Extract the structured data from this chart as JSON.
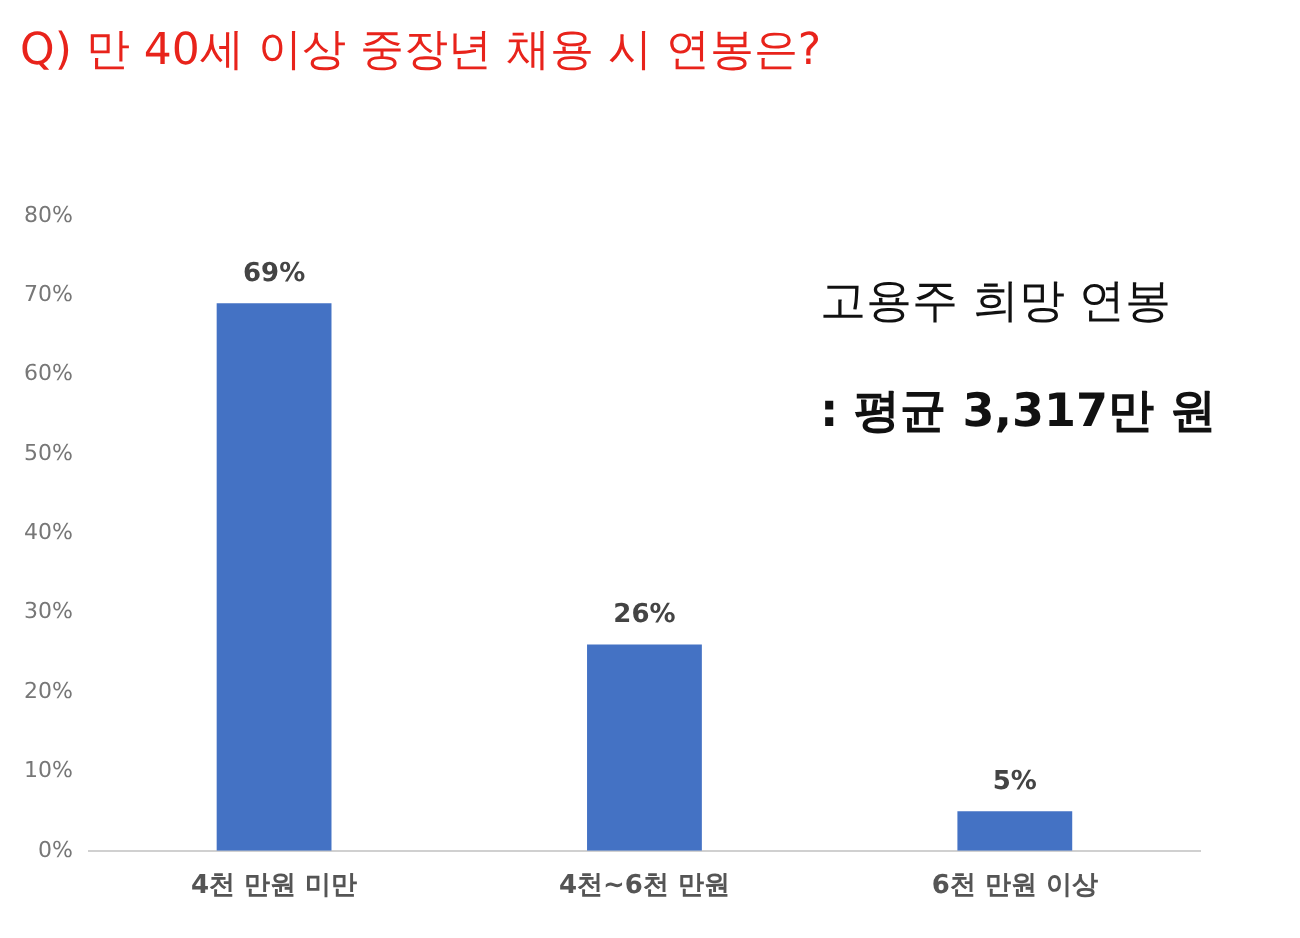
{
  "chart_data": {
    "type": "bar",
    "title": "Q) 만 40세 이상 중장년 채용 시 연봉은?",
    "categories": [
      "4천 만원 미만",
      "4천~6천 만원",
      "6천 만원 이상"
    ],
    "values": [
      69,
      26,
      5
    ],
    "color": "#4472c4",
    "value_labels": [
      "69%",
      "26%",
      "5%"
    ],
    "ylim": [
      0,
      80
    ],
    "yticks": [
      {
        "value": 0,
        "label": "0%"
      },
      {
        "value": 10,
        "label": "10%"
      },
      {
        "value": 20,
        "label": "20%"
      },
      {
        "value": 30,
        "label": "30%"
      },
      {
        "value": 40,
        "label": "40%"
      },
      {
        "value": 50,
        "label": "50%"
      },
      {
        "value": 60,
        "label": "60%"
      },
      {
        "value": 70,
        "label": "70%"
      },
      {
        "value": 80,
        "label": "80%"
      }
    ],
    "grid": false,
    "legend": false,
    "annotations": [
      "고용주 희망 연봉",
      ": 평균 3,317만 원"
    ]
  }
}
